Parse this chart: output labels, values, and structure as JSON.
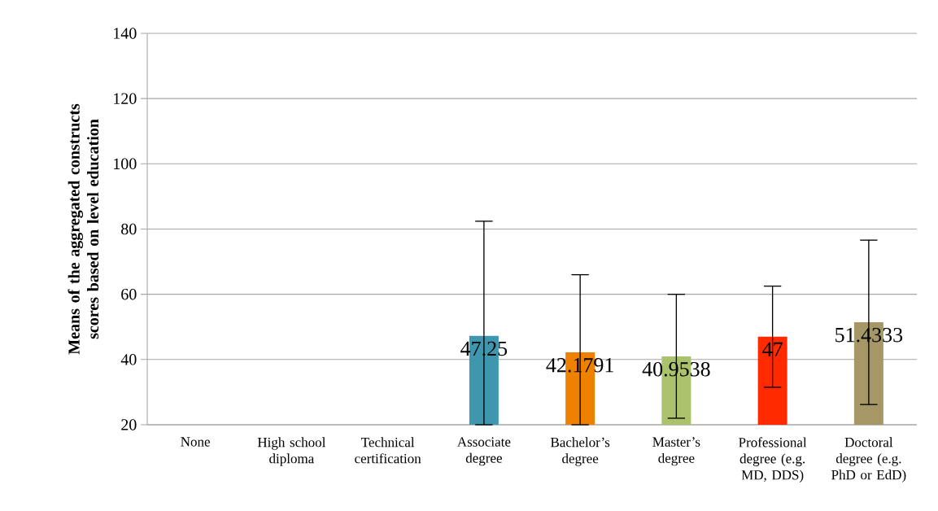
{
  "chart_data": {
    "type": "bar",
    "ylabel": "Means of the aggregated constructs scores based on level education",
    "categories": [
      "None",
      "High school diploma",
      "Technical certification",
      "Associate degree",
      "Bachelor’s degree",
      "Master’s degree",
      "Professional degree (e.g. MD, DDS)",
      "Doctoral degree (e.g. PhD or EdD)"
    ],
    "values": [
      null,
      null,
      null,
      47.25,
      42.1791,
      40.9538,
      47,
      51.4333
    ],
    "colors": [
      "#3e97ae",
      "#3e97ae",
      "#3e97ae",
      "#3e97ae",
      "#ee8100",
      "#a9c26b",
      "#ff2a00",
      "#a59866"
    ],
    "errors": [
      null,
      null,
      null,
      [
        20,
        82.4
      ],
      [
        20,
        66
      ],
      [
        22,
        60
      ],
      [
        31.5,
        62.5
      ],
      [
        26.2,
        76.6
      ]
    ],
    "data_labels": true,
    "ylim": [
      20,
      140
    ],
    "yticks": [
      20,
      40,
      60,
      80,
      100,
      120,
      140
    ],
    "grid": "y"
  }
}
